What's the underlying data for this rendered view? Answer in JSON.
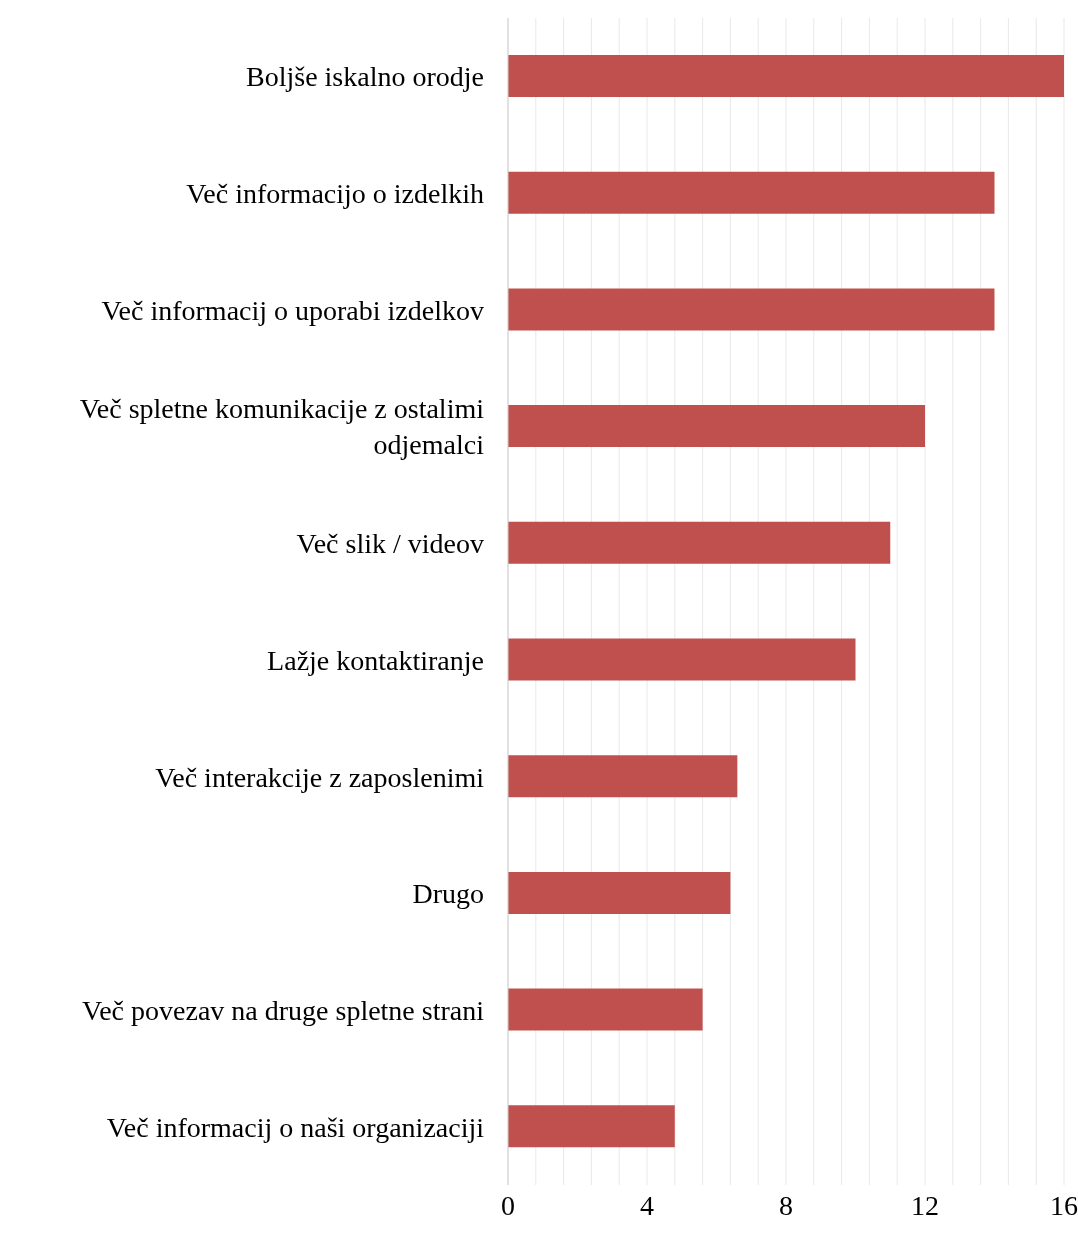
{
  "chart_data": {
    "type": "bar",
    "orientation": "horizontal",
    "categories": [
      "Boljše iskalno orodje",
      "Več informacijo o izdelkih",
      "Več informacij o uporabi izdelkov",
      "Več spletne komunikacije z ostalimi odjemalci",
      "Več slik / videov",
      "Lažje kontaktiranje",
      "Več interakcije z zaposlenimi",
      "Drugo",
      "Več povezav na druge spletne strani",
      "Več informacij o naši organizaciji"
    ],
    "values": [
      16,
      14,
      14,
      12,
      11,
      10,
      6.6,
      6.4,
      5.6,
      4.8
    ],
    "color": "#c0504d",
    "xlim": [
      0,
      16
    ],
    "xticks": [
      0,
      {
        "value": 0.8,
        "label": null
      },
      {
        "value": 1.6,
        "label": null
      },
      {
        "value": 2.4,
        "label": null
      },
      {
        "value": 3.2,
        "label": null
      },
      4,
      {
        "value": 4.8,
        "label": null
      },
      {
        "value": 5.6,
        "label": null
      },
      {
        "value": 6.4,
        "label": null
      },
      {
        "value": 7.2,
        "label": null
      },
      8,
      {
        "value": 8.8,
        "label": null
      },
      {
        "value": 9.6,
        "label": null
      },
      {
        "value": 10.4,
        "label": null
      },
      {
        "value": 11.2,
        "label": null
      },
      12,
      {
        "value": 12.8,
        "label": null
      },
      {
        "value": 13.6,
        "label": null
      },
      {
        "value": 14.4,
        "label": null
      },
      {
        "value": 15.2,
        "label": null
      },
      16
    ],
    "grid": "x"
  }
}
